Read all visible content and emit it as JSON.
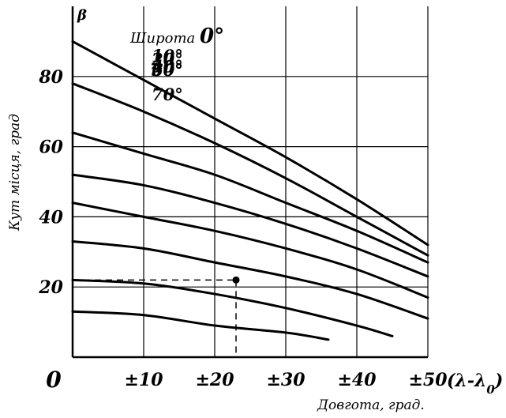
{
  "chart_data": {
    "type": "line",
    "title": "Широта 0°",
    "xlabel": "Довгота, град.",
    "ylabel": "Кут місця, град",
    "y_axis_symbol": "β",
    "x_axis_expression": "(λ-λ0)",
    "xlim": [
      0,
      50
    ],
    "ylim": [
      0,
      100
    ],
    "x_ticks": [
      "0",
      "±10",
      "±20",
      "±30",
      "±40",
      "±50"
    ],
    "y_ticks": [
      "20",
      "40",
      "60",
      "80"
    ],
    "grid": true,
    "series": [
      {
        "name": "0°",
        "label": "0°",
        "x": [
          0,
          10,
          20,
          30,
          40,
          50
        ],
        "y": [
          90,
          79,
          68,
          57,
          45,
          32
        ]
      },
      {
        "name": "10°",
        "label": "10°",
        "x": [
          0,
          10,
          20,
          30,
          40,
          50
        ],
        "y": [
          78,
          70,
          61,
          51,
          40,
          29
        ]
      },
      {
        "name": "20°",
        "label": "20°",
        "x": [
          0,
          10,
          20,
          30,
          40,
          50
        ],
        "y": [
          64,
          58,
          52,
          44,
          36,
          27
        ]
      },
      {
        "name": "30°",
        "label": "30°",
        "x": [
          0,
          10,
          20,
          30,
          40,
          50
        ],
        "y": [
          52,
          49,
          44,
          38,
          31,
          23
        ]
      },
      {
        "name": "40°",
        "label": "40°",
        "x": [
          0,
          10,
          20,
          30,
          40,
          50
        ],
        "y": [
          44,
          40,
          36,
          31,
          25,
          17
        ]
      },
      {
        "name": "50°",
        "label": "50°",
        "x": [
          0,
          10,
          20,
          30,
          40,
          50
        ],
        "y": [
          33,
          31,
          27,
          23,
          18,
          11
        ]
      },
      {
        "name": "60°",
        "label": "60°",
        "x": [
          0,
          10,
          20,
          30,
          40,
          45
        ],
        "y": [
          22,
          21,
          18,
          14,
          9,
          6
        ]
      },
      {
        "name": "70°",
        "label": "70°",
        "x": [
          0,
          10,
          20,
          30,
          36
        ],
        "y": [
          13,
          12,
          9,
          7,
          5
        ]
      }
    ],
    "annotation": {
      "type": "dashed-guide",
      "x": 23,
      "y": 22
    }
  },
  "colors": {
    "line": "#000000",
    "background": "#ffffff"
  }
}
